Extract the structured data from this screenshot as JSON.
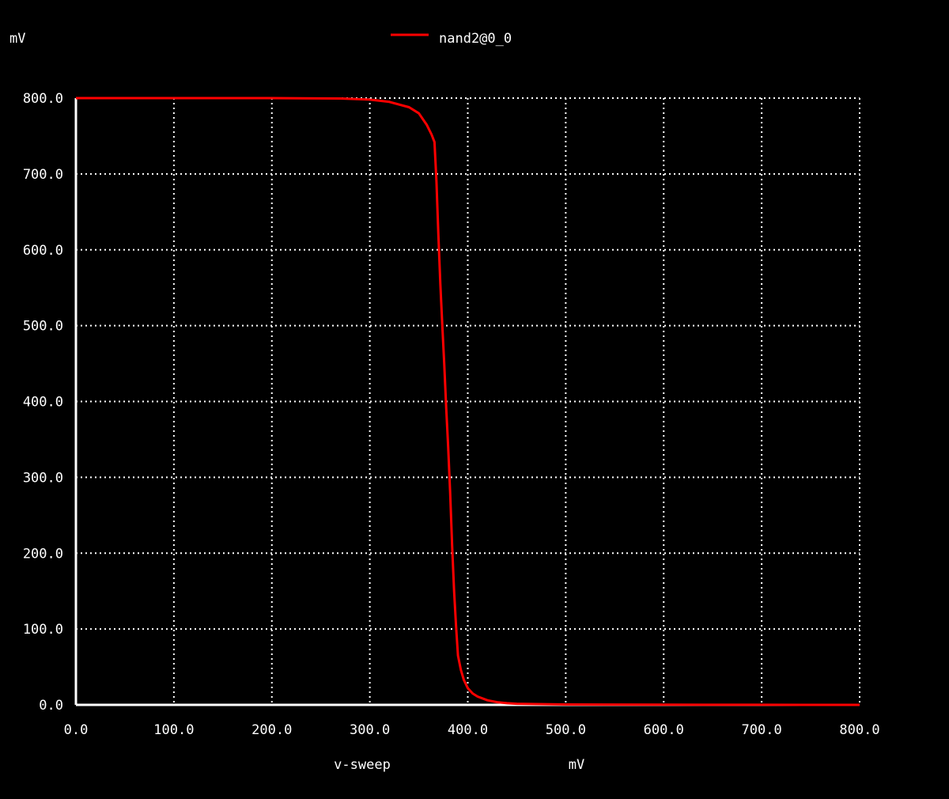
{
  "chart_data": {
    "type": "line",
    "title": "",
    "ylabel": "mV",
    "xlabel": "v-sweep",
    "xunit": "mV",
    "xlim": [
      0,
      800
    ],
    "ylim": [
      0,
      800
    ],
    "grid": true,
    "legend_position": "top-center",
    "background_color": "#000000",
    "axis_color": "#ffffff",
    "grid_color": "#ffffff",
    "x_ticks": [
      "0.0",
      "100.0",
      "200.0",
      "300.0",
      "400.0",
      "500.0",
      "600.0",
      "700.0",
      "800.0"
    ],
    "y_ticks": [
      "0.0",
      "100.0",
      "200.0",
      "300.0",
      "400.0",
      "500.0",
      "600.0",
      "700.0",
      "800.0"
    ],
    "series": [
      {
        "name": "nand2@0_0",
        "color": "#ff0000",
        "x": [
          0,
          100,
          200,
          270,
          300,
          320,
          340,
          350,
          358,
          363,
          366,
          368,
          370,
          372,
          374,
          376,
          378,
          380,
          382,
          384,
          386,
          388,
          390,
          393,
          396,
          400,
          405,
          410,
          420,
          430,
          440,
          450,
          470,
          500,
          600,
          700,
          800
        ],
        "y": [
          800,
          800,
          800,
          799.5,
          798,
          795,
          788,
          780,
          765,
          752,
          742,
          690,
          620,
          555,
          500,
          448,
          392,
          340,
          280,
          210,
          150,
          105,
          65,
          46,
          33,
          22,
          15,
          11,
          6,
          3.5,
          2.2,
          1.5,
          1,
          0.5,
          0.2,
          0.1,
          0
        ]
      }
    ]
  }
}
